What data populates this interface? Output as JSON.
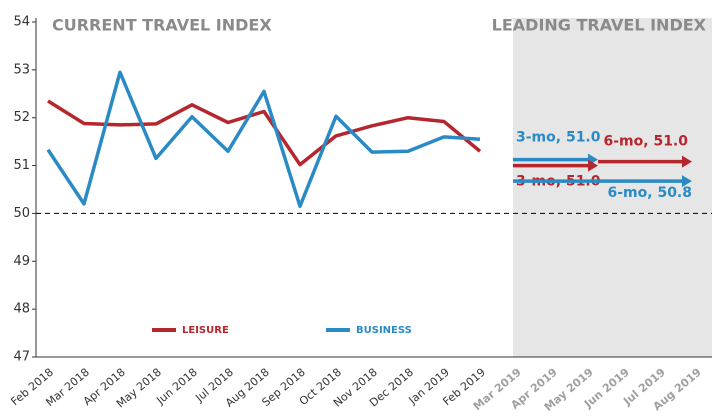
{
  "chart_data": {
    "type": "line",
    "title": "CURRENT TRAVEL INDEX",
    "subtitle": "LEADING TRAVEL INDEX",
    "categories": [
      "Feb 2018",
      "Mar 2018",
      "Apr 2018",
      "May 2018",
      "Jun 2018",
      "Jul 2018",
      "Aug 2018",
      "Sep 2018",
      "Oct 2018",
      "Nov 2018",
      "Dec 2018",
      "Jan 2019",
      "Feb 2019",
      "Mar 2019",
      "Apr 2019",
      "May 2019",
      "Jun 2019",
      "Jul 2019",
      "Aug 2019"
    ],
    "series": [
      {
        "name": "LEISURE",
        "color": "#b5262d",
        "values": [
          52.35,
          51.88,
          51.85,
          51.87,
          52.27,
          51.9,
          52.13,
          51.02,
          51.62,
          51.83,
          52.0,
          51.92,
          51.3,
          null,
          null,
          null,
          null,
          null,
          null
        ]
      },
      {
        "name": "BUSINESS",
        "color": "#2a8ac6",
        "values": [
          51.33,
          50.2,
          52.95,
          51.15,
          52.02,
          51.3,
          52.55,
          50.15,
          52.03,
          51.28,
          51.3,
          51.6,
          51.55,
          null,
          null,
          null,
          null,
          null,
          null
        ]
      }
    ],
    "forecasts": [
      {
        "series": "BUSINESS",
        "label": "3-mo, 51.0",
        "value": 51.0
      },
      {
        "series": "LEISURE",
        "label": "6-mo, 51.0",
        "value": 51.0
      },
      {
        "series": "LEISURE",
        "label": "3-mo, 51.0",
        "value": 51.0
      },
      {
        "series": "BUSINESS",
        "label": "6-mo, 50.8",
        "value": 50.8
      }
    ],
    "reference_line": 50,
    "ylim": [
      47,
      54
    ],
    "yticks": [
      47,
      48,
      49,
      50,
      51,
      52,
      53,
      54
    ]
  }
}
